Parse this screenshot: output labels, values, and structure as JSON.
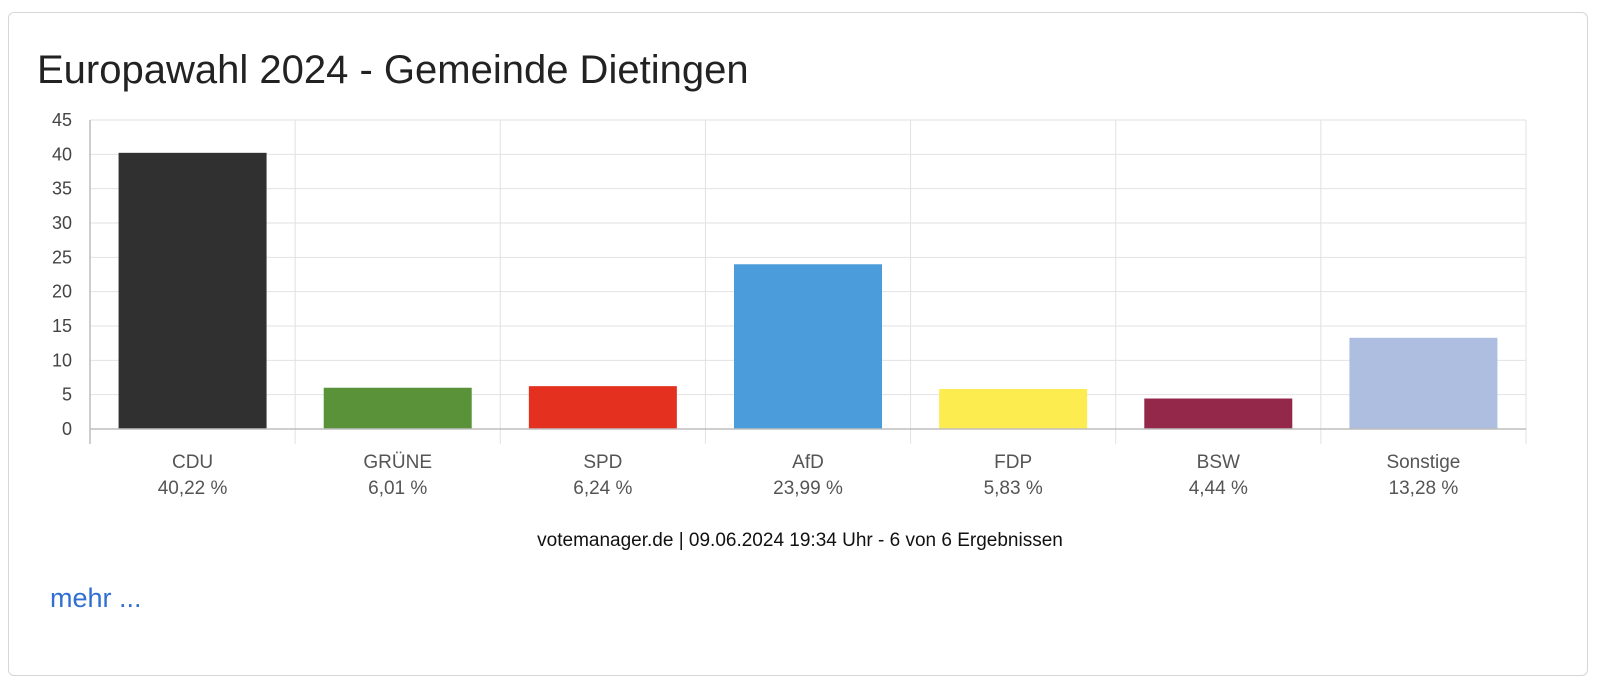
{
  "widget": {
    "more_label": "mehr ..."
  },
  "chart_data": {
    "type": "bar",
    "title": "Europawahl 2024 - Gemeinde Dietingen",
    "categories": [
      "CDU",
      "GRÜNE",
      "SPD",
      "AfD",
      "FDP",
      "BSW",
      "Sonstige"
    ],
    "values": [
      40.22,
      6.01,
      6.24,
      23.99,
      5.83,
      4.44,
      13.28
    ],
    "value_labels": [
      "40,22 %",
      "6,01 %",
      "6,24 %",
      "23,99 %",
      "5,83 %",
      "4,44 %",
      "13,28 %"
    ],
    "colors": [
      "#303030",
      "#5a923a",
      "#e3301f",
      "#4a9cda",
      "#fcec4f",
      "#93284a",
      "#adbee0"
    ],
    "ylim": [
      0,
      45
    ],
    "yticks": [
      0,
      5,
      10,
      15,
      20,
      25,
      30,
      35,
      40,
      45
    ],
    "grid": true,
    "xlabel": "",
    "ylabel": "",
    "source": "votemanager.de | 09.06.2024 19:34 Uhr - 6 von 6 Ergebnissen"
  }
}
